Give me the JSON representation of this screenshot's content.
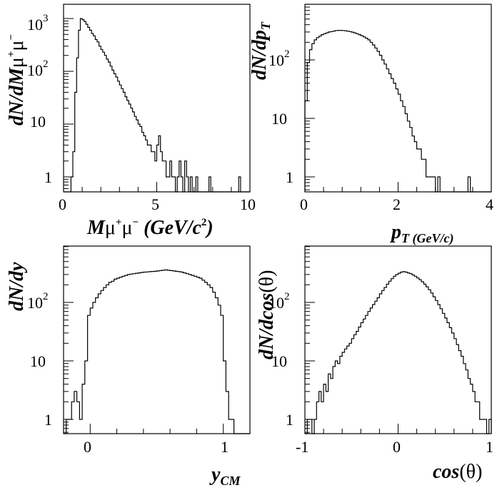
{
  "chart_data": [
    {
      "type": "histogram",
      "panel": "top-left",
      "ylabel": "dN/dMμ⁺μ⁻",
      "xlabel": "Mμ⁺μ⁻ (GeV/c²)",
      "yscale": "log",
      "xlim": [
        0,
        10
      ],
      "ylim": [
        0.5,
        1500
      ],
      "x_ticks": [
        "0",
        "5",
        "10"
      ],
      "y_ticks": [
        "1",
        "10",
        "10²",
        "10³"
      ],
      "bin_edges_start": 0,
      "bin_width": 0.1,
      "values": [
        0,
        0,
        0,
        0,
        1,
        3,
        40,
        180,
        600,
        1000,
        950,
        880,
        780,
        680,
        600,
        520,
        470,
        400,
        360,
        300,
        260,
        230,
        200,
        170,
        150,
        125,
        105,
        90,
        78,
        65,
        55,
        47,
        40,
        33,
        28,
        24,
        20,
        17,
        14,
        12,
        10,
        9,
        7,
        6,
        5,
        4,
        4,
        3,
        3,
        2,
        4,
        6,
        3,
        2,
        2,
        1,
        1,
        2,
        1,
        1,
        0,
        1,
        2,
        1,
        0,
        2,
        1,
        0,
        1,
        0,
        0,
        1,
        0,
        0,
        0,
        0,
        0,
        0,
        1,
        0,
        0,
        0,
        0,
        0,
        0,
        0,
        0,
        0,
        0,
        0,
        0,
        0,
        0,
        0,
        1,
        0,
        0,
        0,
        0,
        0
      ]
    },
    {
      "type": "histogram",
      "panel": "top-right",
      "ylabel": "dN/dp",
      "ylabel_sub": "T",
      "xlabel": "p",
      "xlabel_sub": "T (GeV/c)",
      "yscale": "log",
      "xlim": [
        0,
        4
      ],
      "ylim": [
        0.5,
        600
      ],
      "x_ticks": [
        "0",
        "2",
        "4"
      ],
      "y_ticks": [
        "1",
        "10",
        "10²"
      ],
      "bin_edges_start": 0,
      "bin_width": 0.05,
      "values": [
        20,
        90,
        150,
        190,
        220,
        240,
        255,
        270,
        280,
        290,
        300,
        305,
        310,
        318,
        320,
        320,
        318,
        315,
        310,
        305,
        298,
        290,
        280,
        270,
        260,
        248,
        235,
        220,
        200,
        180,
        160,
        140,
        120,
        100,
        85,
        70,
        58,
        48,
        40,
        32,
        26,
        20,
        16,
        12,
        9,
        7,
        5,
        4,
        3,
        3,
        2,
        2,
        1,
        1,
        1,
        1,
        0,
        1,
        0,
        0,
        0,
        0,
        0,
        0,
        0,
        0,
        0,
        0,
        0,
        0,
        1,
        0,
        0,
        0,
        0,
        0,
        0,
        0,
        0,
        0
      ]
    },
    {
      "type": "histogram",
      "panel": "bottom-left",
      "ylabel": "dN/dy",
      "xlabel": "y",
      "xlabel_sub": "CM",
      "yscale": "log",
      "xlim": [
        -0.2,
        1.2
      ],
      "ylim": [
        0.5,
        600
      ],
      "x_ticks": [
        "0",
        "1"
      ],
      "y_ticks": [
        "1",
        "10",
        "10²"
      ],
      "bin_edges_start": -0.2,
      "bin_width": 0.02,
      "values": [
        0,
        1,
        1,
        2,
        3,
        2,
        1,
        4,
        10,
        60,
        80,
        100,
        120,
        140,
        160,
        180,
        200,
        220,
        230,
        250,
        260,
        270,
        280,
        290,
        300,
        305,
        310,
        315,
        320,
        325,
        330,
        332,
        335,
        338,
        340,
        345,
        350,
        355,
        360,
        355,
        350,
        345,
        340,
        335,
        330,
        320,
        310,
        300,
        290,
        280,
        270,
        260,
        240,
        220,
        200,
        180,
        150,
        120,
        90,
        60,
        10,
        3,
        1,
        1,
        0,
        0,
        0,
        0,
        0,
        0
      ]
    },
    {
      "type": "histogram",
      "panel": "bottom-right",
      "ylabel": "dN/dcos(θ)",
      "xlabel": "cos(θ)",
      "yscale": "log",
      "xlim": [
        -1,
        1
      ],
      "ylim": [
        0.5,
        600
      ],
      "x_ticks": [
        "-1",
        "0",
        "1"
      ],
      "y_ticks": [
        "1",
        "10",
        "10²"
      ],
      "bin_edges_start": -1,
      "bin_width": 0.025,
      "values": [
        0,
        1,
        1,
        0,
        1,
        2,
        3,
        2,
        4,
        3,
        6,
        5,
        8,
        10,
        9,
        12,
        14,
        16,
        18,
        20,
        24,
        28,
        32,
        38,
        45,
        52,
        60,
        70,
        80,
        92,
        105,
        120,
        140,
        160,
        180,
        205,
        230,
        255,
        280,
        300,
        315,
        330,
        335,
        330,
        320,
        310,
        295,
        280,
        262,
        245,
        225,
        205,
        185,
        165,
        145,
        125,
        108,
        92,
        78,
        65,
        54,
        45,
        37,
        30,
        24,
        19,
        15,
        12,
        9,
        7,
        5,
        4,
        3,
        2,
        2,
        1,
        1,
        1,
        0,
        1
      ]
    }
  ]
}
